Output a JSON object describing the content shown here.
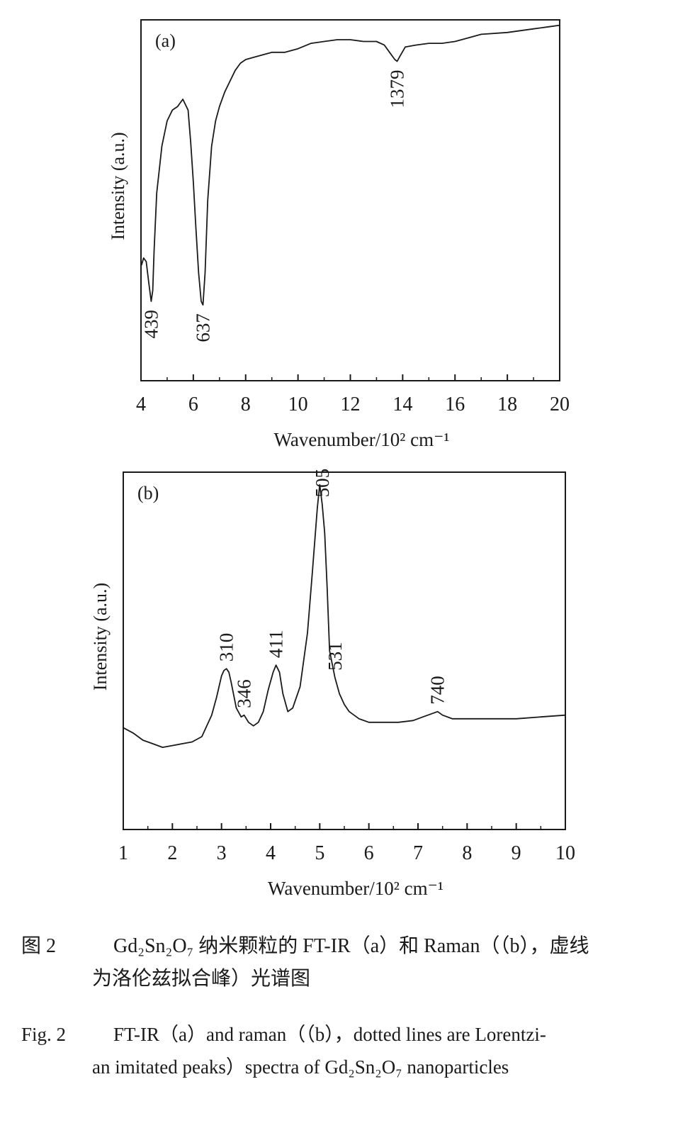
{
  "chart_data": [
    {
      "type": "line",
      "panel_label": "(a)",
      "xlabel": "Wavenumber/10² cm⁻¹",
      "ylabel": "Intensity (a.u.)",
      "xlim": [
        4,
        20
      ],
      "ylim": [
        0,
        1
      ],
      "x_ticks": [
        "4",
        "6",
        "8",
        "10",
        "12",
        "14",
        "16",
        "18",
        "20"
      ],
      "x_tick_values": [
        4,
        6,
        8,
        10,
        12,
        14,
        16,
        18,
        20
      ],
      "grid": false,
      "series": [
        {
          "x": [
            4.02,
            4.1,
            4.2,
            4.3,
            4.39,
            4.45,
            4.5,
            4.6,
            4.8,
            5.0,
            5.2,
            5.4,
            5.6,
            5.8,
            5.9,
            6.0,
            6.1,
            6.2,
            6.3,
            6.37,
            6.45,
            6.55,
            6.7,
            6.85,
            7.0,
            7.2,
            7.4,
            7.6,
            7.8,
            8.0,
            8.5,
            9.0,
            9.5,
            10.0,
            10.5,
            11.0,
            11.5,
            12.0,
            12.5,
            13.0,
            13.3,
            13.5,
            13.7,
            13.79,
            13.9,
            14.1,
            14.5,
            15.0,
            15.5,
            16.0,
            16.5,
            17.0,
            18.0,
            19.0,
            19.5,
            20.0
          ],
          "y": [
            0.32,
            0.34,
            0.33,
            0.27,
            0.22,
            0.25,
            0.36,
            0.52,
            0.65,
            0.72,
            0.75,
            0.76,
            0.78,
            0.75,
            0.66,
            0.55,
            0.42,
            0.3,
            0.22,
            0.21,
            0.3,
            0.5,
            0.65,
            0.72,
            0.76,
            0.8,
            0.83,
            0.86,
            0.88,
            0.89,
            0.9,
            0.91,
            0.91,
            0.92,
            0.935,
            0.94,
            0.945,
            0.945,
            0.94,
            0.94,
            0.93,
            0.91,
            0.89,
            0.885,
            0.9,
            0.925,
            0.93,
            0.935,
            0.935,
            0.94,
            0.95,
            0.96,
            0.965,
            0.975,
            0.98,
            0.985
          ]
        }
      ],
      "annotations": [
        {
          "text": "439",
          "x": 4.39
        },
        {
          "text": "637",
          "x": 6.37
        },
        {
          "text": "1379",
          "x": 13.79
        }
      ]
    },
    {
      "type": "line",
      "panel_label": "(b)",
      "xlabel": "Wavenumber/10² cm⁻¹",
      "ylabel": "Intensity (a.u.)",
      "xlim": [
        1,
        10
      ],
      "ylim": [
        0,
        1
      ],
      "x_ticks": [
        "1",
        "2",
        "3",
        "4",
        "5",
        "6",
        "7",
        "8",
        "9",
        "10"
      ],
      "x_tick_values": [
        1,
        2,
        3,
        4,
        5,
        6,
        7,
        8,
        9,
        10
      ],
      "grid": false,
      "series": [
        {
          "x": [
            1.0,
            1.2,
            1.4,
            1.6,
            1.8,
            2.0,
            2.2,
            2.4,
            2.6,
            2.8,
            2.9,
            3.0,
            3.05,
            3.1,
            3.15,
            3.2,
            3.3,
            3.4,
            3.46,
            3.55,
            3.65,
            3.75,
            3.85,
            3.95,
            4.05,
            4.11,
            4.18,
            4.25,
            4.35,
            4.45,
            4.6,
            4.75,
            4.85,
            4.95,
            5.0,
            5.05,
            5.1,
            5.15,
            5.2,
            5.31,
            5.4,
            5.5,
            5.6,
            5.8,
            6.0,
            6.3,
            6.6,
            6.9,
            7.1,
            7.3,
            7.4,
            7.5,
            7.7,
            8.0,
            8.5,
            9.0,
            9.5,
            10.0
          ],
          "y": [
            0.285,
            0.27,
            0.25,
            0.24,
            0.23,
            0.235,
            0.24,
            0.245,
            0.26,
            0.32,
            0.37,
            0.43,
            0.445,
            0.45,
            0.44,
            0.41,
            0.34,
            0.315,
            0.32,
            0.3,
            0.29,
            0.3,
            0.33,
            0.39,
            0.44,
            0.46,
            0.44,
            0.38,
            0.33,
            0.34,
            0.4,
            0.55,
            0.72,
            0.9,
            0.965,
            0.91,
            0.83,
            0.68,
            0.5,
            0.425,
            0.38,
            0.35,
            0.33,
            0.31,
            0.3,
            0.3,
            0.3,
            0.305,
            0.315,
            0.325,
            0.33,
            0.32,
            0.31,
            0.31,
            0.31,
            0.31,
            0.315,
            0.32
          ]
        }
      ],
      "annotations": [
        {
          "text": "310",
          "x": 3.1
        },
        {
          "text": "346",
          "x": 3.46
        },
        {
          "text": "411",
          "x": 4.11
        },
        {
          "text": "505",
          "x": 5.05
        },
        {
          "text": "531",
          "x": 5.31
        },
        {
          "text": "740",
          "x": 7.4
        }
      ]
    }
  ],
  "caption": {
    "zh_label": "图 2",
    "zh_line1": "Gd₂Sn₂O₇ 纳米颗粒的 FT-IR（a）和 Raman（（b），虚线",
    "zh_line2": "为洛伦兹拟合峰）光谱图",
    "en_label": "Fig. 2",
    "en_line1": "FT-IR（a）and raman（（b），dotted lines are Lorentzi-",
    "en_line2": "an imitated peaks）spectra of Gd₂Sn₂O₇ nanoparticles"
  }
}
